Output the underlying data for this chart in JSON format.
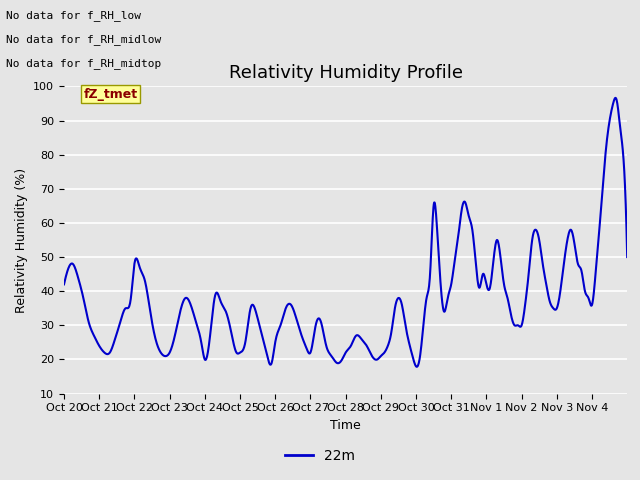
{
  "title": "Relativity Humidity Profile",
  "ylabel": "Relativity Humidity (%)",
  "xlabel": "Time",
  "ylim": [
    10,
    100
  ],
  "yticks": [
    10,
    20,
    30,
    40,
    50,
    60,
    70,
    80,
    90,
    100
  ],
  "line_color": "#0000CC",
  "line_width": 1.5,
  "legend_label": "22m",
  "background_color": "#E5E5E5",
  "plot_bg_color": "#E5E5E5",
  "grid_color": "#FFFFFF",
  "annotations": [
    "No data for f_RH_low",
    "No data for f_RH_midlow",
    "No data for f_RH_midtop"
  ],
  "tooltip_label": "fZ_tmet",
  "x_tick_labels": [
    "Oct 20",
    "Oct 21",
    "Oct 22",
    "Oct 23",
    "Oct 24",
    "Oct 25",
    "Oct 26",
    "Oct 27",
    "Oct 28",
    "Oct 29",
    "Oct 30",
    "Oct 31",
    "Nov 1",
    "Nov 2",
    "Nov 3",
    "Nov 4"
  ],
  "title_fontsize": 13,
  "axis_fontsize": 9,
  "tick_fontsize": 8,
  "annot_fontsize": 8
}
